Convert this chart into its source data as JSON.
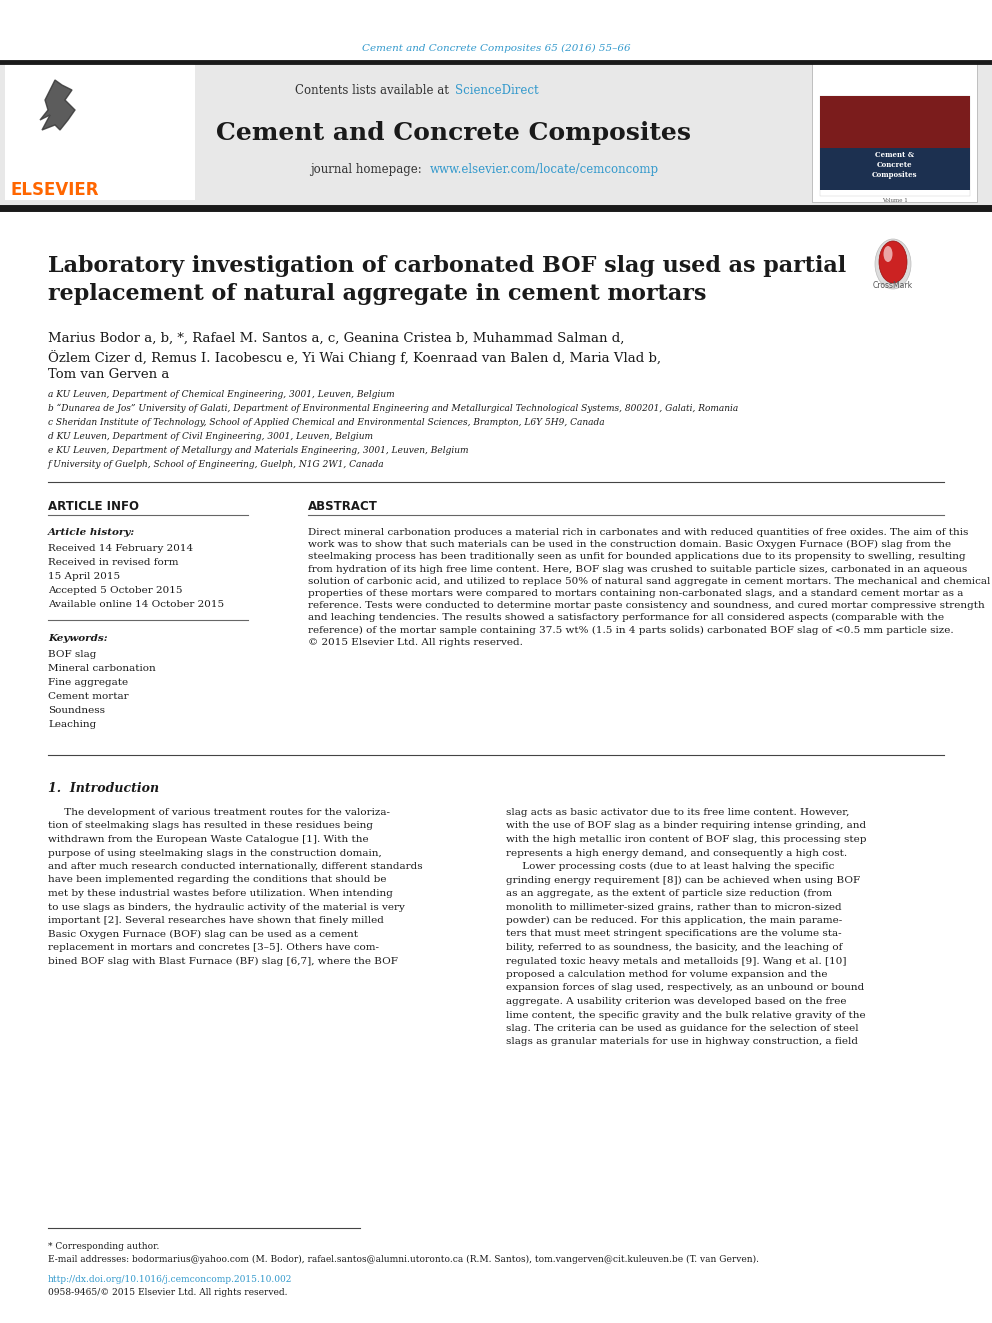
{
  "page_bg": "#ffffff",
  "journal_ref_color": "#3399cc",
  "journal_ref": "Cement and Concrete Composites 65 (2016) 55–66",
  "journal_name": "Cement and Concrete Composites",
  "journal_homepage_text": "journal homepage: ",
  "journal_url": "www.elsevier.com/locate/cemconcomp",
  "journal_url_color": "#3399cc",
  "sciencedirect_text": "Contents lists available at ",
  "sciencedirect_link": "ScienceDirect",
  "sciencedirect_color": "#3399cc",
  "header_bg": "#e8e8e8",
  "elsevier_color": "#ff6600",
  "article_title": "Laboratory investigation of carbonated BOF slag used as partial\nreplacement of natural aggregate in cement mortars",
  "authors_line1": "Marius Bodor a, b, *, Rafael M. Santos a, c, Geanina Cristea b, Muhammad Salman d,",
  "authors_line2": "Özlem Cizer d, Remus I. Iacobescu e, Yi Wai Chiang f, Koenraad van Balen d, Maria Vlad b,",
  "authors_line3": "Tom van Gerven a",
  "affiliations": [
    "a KU Leuven, Department of Chemical Engineering, 3001, Leuven, Belgium",
    "b “Dunarea de Jos” University of Galati, Department of Environmental Engineering and Metallurgical Technological Systems, 800201, Galati, Romania",
    "c Sheridan Institute of Technology, School of Applied Chemical and Environmental Sciences, Brampton, L6Y 5H9, Canada",
    "d KU Leuven, Department of Civil Engineering, 3001, Leuven, Belgium",
    "e KU Leuven, Department of Metallurgy and Materials Engineering, 3001, Leuven, Belgium",
    "f University of Guelph, School of Engineering, Guelph, N1G 2W1, Canada"
  ],
  "article_info_title": "ARTICLE INFO",
  "article_history_label": "Article history:",
  "received": "Received 14 February 2014",
  "revised": "Received in revised form",
  "revised2": "15 April 2015",
  "accepted": "Accepted 5 October 2015",
  "available": "Available online 14 October 2015",
  "keywords_label": "Keywords:",
  "keywords": [
    "BOF slag",
    "Mineral carbonation",
    "Fine aggregate",
    "Cement mortar",
    "Soundness",
    "Leaching"
  ],
  "abstract_title": "ABSTRACT",
  "abstract_text": "Direct mineral carbonation produces a material rich in carbonates and with reduced quantities of free oxides. The aim of this work was to show that such materials can be used in the construction domain. Basic Oxygen Furnace (BOF) slag from the steelmaking process has been traditionally seen as unfit for bounded applications due to its propensity to swelling, resulting from hydration of its high free lime content. Here, BOF slag was crushed to suitable particle sizes, carbonated in an aqueous solution of carbonic acid, and utilized to replace 50% of natural sand aggregate in cement mortars. The mechanical and chemical properties of these mortars were compared to mortars containing non-carbonated slags, and a standard cement mortar as a reference. Tests were conducted to determine mortar paste consistency and soundness, and cured mortar compressive strength and leaching tendencies. The results showed a satisfactory performance for all considered aspects (comparable with the reference) of the mortar sample containing 37.5 wt% (1.5 in 4 parts solids) carbonated BOF slag of <0.5 mm particle size.\n© 2015 Elsevier Ltd. All rights reserved.",
  "section1_title": "1.  Introduction",
  "intro_col1_lines": [
    "     The development of various treatment routes for the valoriza-",
    "tion of steelmaking slags has resulted in these residues being",
    "withdrawn from the European Waste Catalogue [1]. With the",
    "purpose of using steelmaking slags in the construction domain,",
    "and after much research conducted internationally, different standards",
    "have been implemented regarding the conditions that should be",
    "met by these industrial wastes before utilization. When intending",
    "to use slags as binders, the hydraulic activity of the material is very",
    "important [2]. Several researches have shown that finely milled",
    "Basic Oxygen Furnace (BOF) slag can be used as a cement",
    "replacement in mortars and concretes [3–5]. Others have com-",
    "bined BOF slag with Blast Furnace (BF) slag [6,7], where the BOF"
  ],
  "intro_col2_lines": [
    "slag acts as basic activator due to its free lime content. However,",
    "with the use of BOF slag as a binder requiring intense grinding, and",
    "with the high metallic iron content of BOF slag, this processing step",
    "represents a high energy demand, and consequently a high cost.",
    "     Lower processing costs (due to at least halving the specific",
    "grinding energy requirement [8]) can be achieved when using BOF",
    "as an aggregate, as the extent of particle size reduction (from",
    "monolith to millimeter-sized grains, rather than to micron-sized",
    "powder) can be reduced. For this application, the main parame-",
    "ters that must meet stringent specifications are the volume sta-",
    "bility, referred to as soundness, the basicity, and the leaching of",
    "regulated toxic heavy metals and metalloids [9]. Wang et al. [10]",
    "proposed a calculation method for volume expansion and the",
    "expansion forces of slag used, respectively, as an unbound or bound",
    "aggregate. A usability criterion was developed based on the free",
    "lime content, the specific gravity and the bulk relative gravity of the",
    "slag. The criteria can be used as guidance for the selection of steel",
    "slags as granular materials for use in highway construction, a field"
  ],
  "footnote_star": "* Corresponding author.",
  "footnote_email": "E-mail addresses: bodormarius@yahoo.com (M. Bodor), rafael.santos@alumni.utoronto.ca (R.M. Santos), tom.vangerven@cit.kuleuven.be (T. van Gerven).",
  "doi": "http://dx.doi.org/10.1016/j.cemconcomp.2015.10.002",
  "doi_color": "#3399cc",
  "issn": "0958-9465/© 2015 Elsevier Ltd. All rights reserved."
}
